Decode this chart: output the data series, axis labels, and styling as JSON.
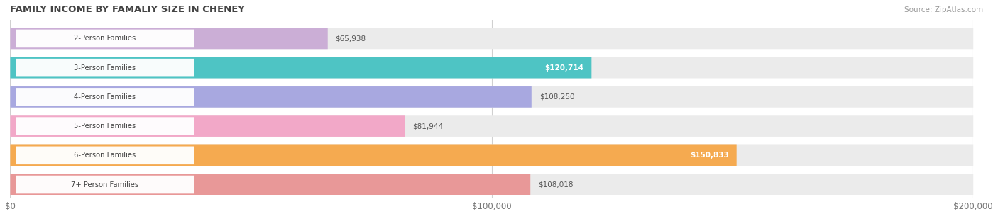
{
  "title": "FAMILY INCOME BY FAMALIY SIZE IN CHENEY",
  "source": "Source: ZipAtlas.com",
  "categories": [
    "2-Person Families",
    "3-Person Families",
    "4-Person Families",
    "5-Person Families",
    "6-Person Families",
    "7+ Person Families"
  ],
  "values": [
    65938,
    120714,
    108250,
    81944,
    150833,
    108018
  ],
  "bar_colors": [
    "#cbaed6",
    "#4ec4c4",
    "#a8a8e0",
    "#f2a8c8",
    "#f5aa50",
    "#e89898"
  ],
  "label_colors": [
    "#555555",
    "#ffffff",
    "#555555",
    "#555555",
    "#ffffff",
    "#555555"
  ],
  "bg_color": "#ffffff",
  "bar_bg_color": "#ebebeb",
  "xmax": 200000,
  "xticks": [
    0,
    100000,
    200000
  ],
  "xticklabels": [
    "$0",
    "$100,000",
    "$200,000"
  ],
  "value_labels": [
    "$65,938",
    "$120,714",
    "$108,250",
    "$81,944",
    "$150,833",
    "$108,018"
  ]
}
